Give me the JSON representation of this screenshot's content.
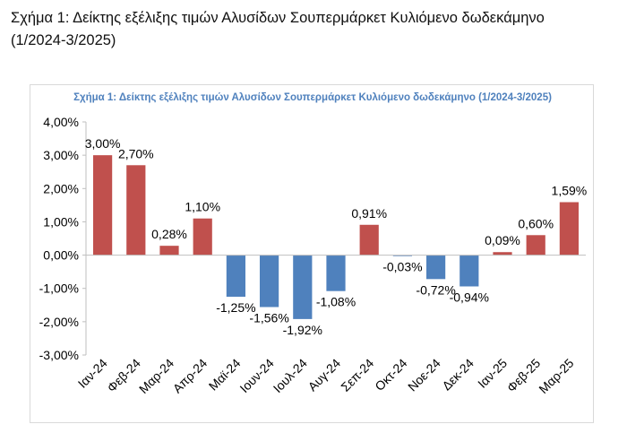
{
  "caption": "Σχήμα 1: Δείκτης εξέλιξης τιμών Αλυσίδων Σουπερμάρκετ Κυλιόμενο δωδεκάμηνο (1/2024-3/2025)",
  "colors": {
    "positive": "#c0504d",
    "negative": "#4f81bd",
    "title": "#4f81bd",
    "axis": "#bfbfbf"
  },
  "chart_data": {
    "type": "bar",
    "title": "Σχήμα 1: Δείκτης εξέλιξης τιμών Αλυσίδων Σουπερμάρκετ Κυλιόμενο δωδεκάμηνο (1/2024-3/2025)",
    "xlabel": "",
    "ylabel": "",
    "ylim": [
      -3,
      4
    ],
    "yticks": [
      4,
      3,
      2,
      1,
      0,
      -1,
      -2,
      -3
    ],
    "ytick_labels": [
      "4,00%",
      "3,00%",
      "2,00%",
      "1,00%",
      "0,00%",
      "-1,00%",
      "-2,00%",
      "-3,00%"
    ],
    "grid": false,
    "categories": [
      "Ιαν-24",
      "Φεβ-24",
      "Μαρ-24",
      "Απρ-24",
      "Μαϊ-24",
      "Ιουν-24",
      "Ιουλ-24",
      "Αυγ-24",
      "Σεπ-24",
      "Οκτ-24",
      "Νοε-24",
      "Δεκ-24",
      "Ιαν-25",
      "Φεβ-25",
      "Μαρ-25"
    ],
    "values": [
      3.0,
      2.7,
      0.28,
      1.1,
      -1.25,
      -1.56,
      -1.92,
      -1.08,
      0.91,
      -0.03,
      -0.72,
      -0.94,
      0.09,
      0.6,
      1.59
    ],
    "value_labels": [
      "3,00%",
      "2,70%",
      "0,28%",
      "1,10%",
      "-1,25%",
      "-1,56%",
      "-1,92%",
      "-1,08%",
      "0,91%",
      "-0,03%",
      "-0,72%",
      "-0,94%",
      "0,09%",
      "0,60%",
      "1,59%"
    ]
  }
}
